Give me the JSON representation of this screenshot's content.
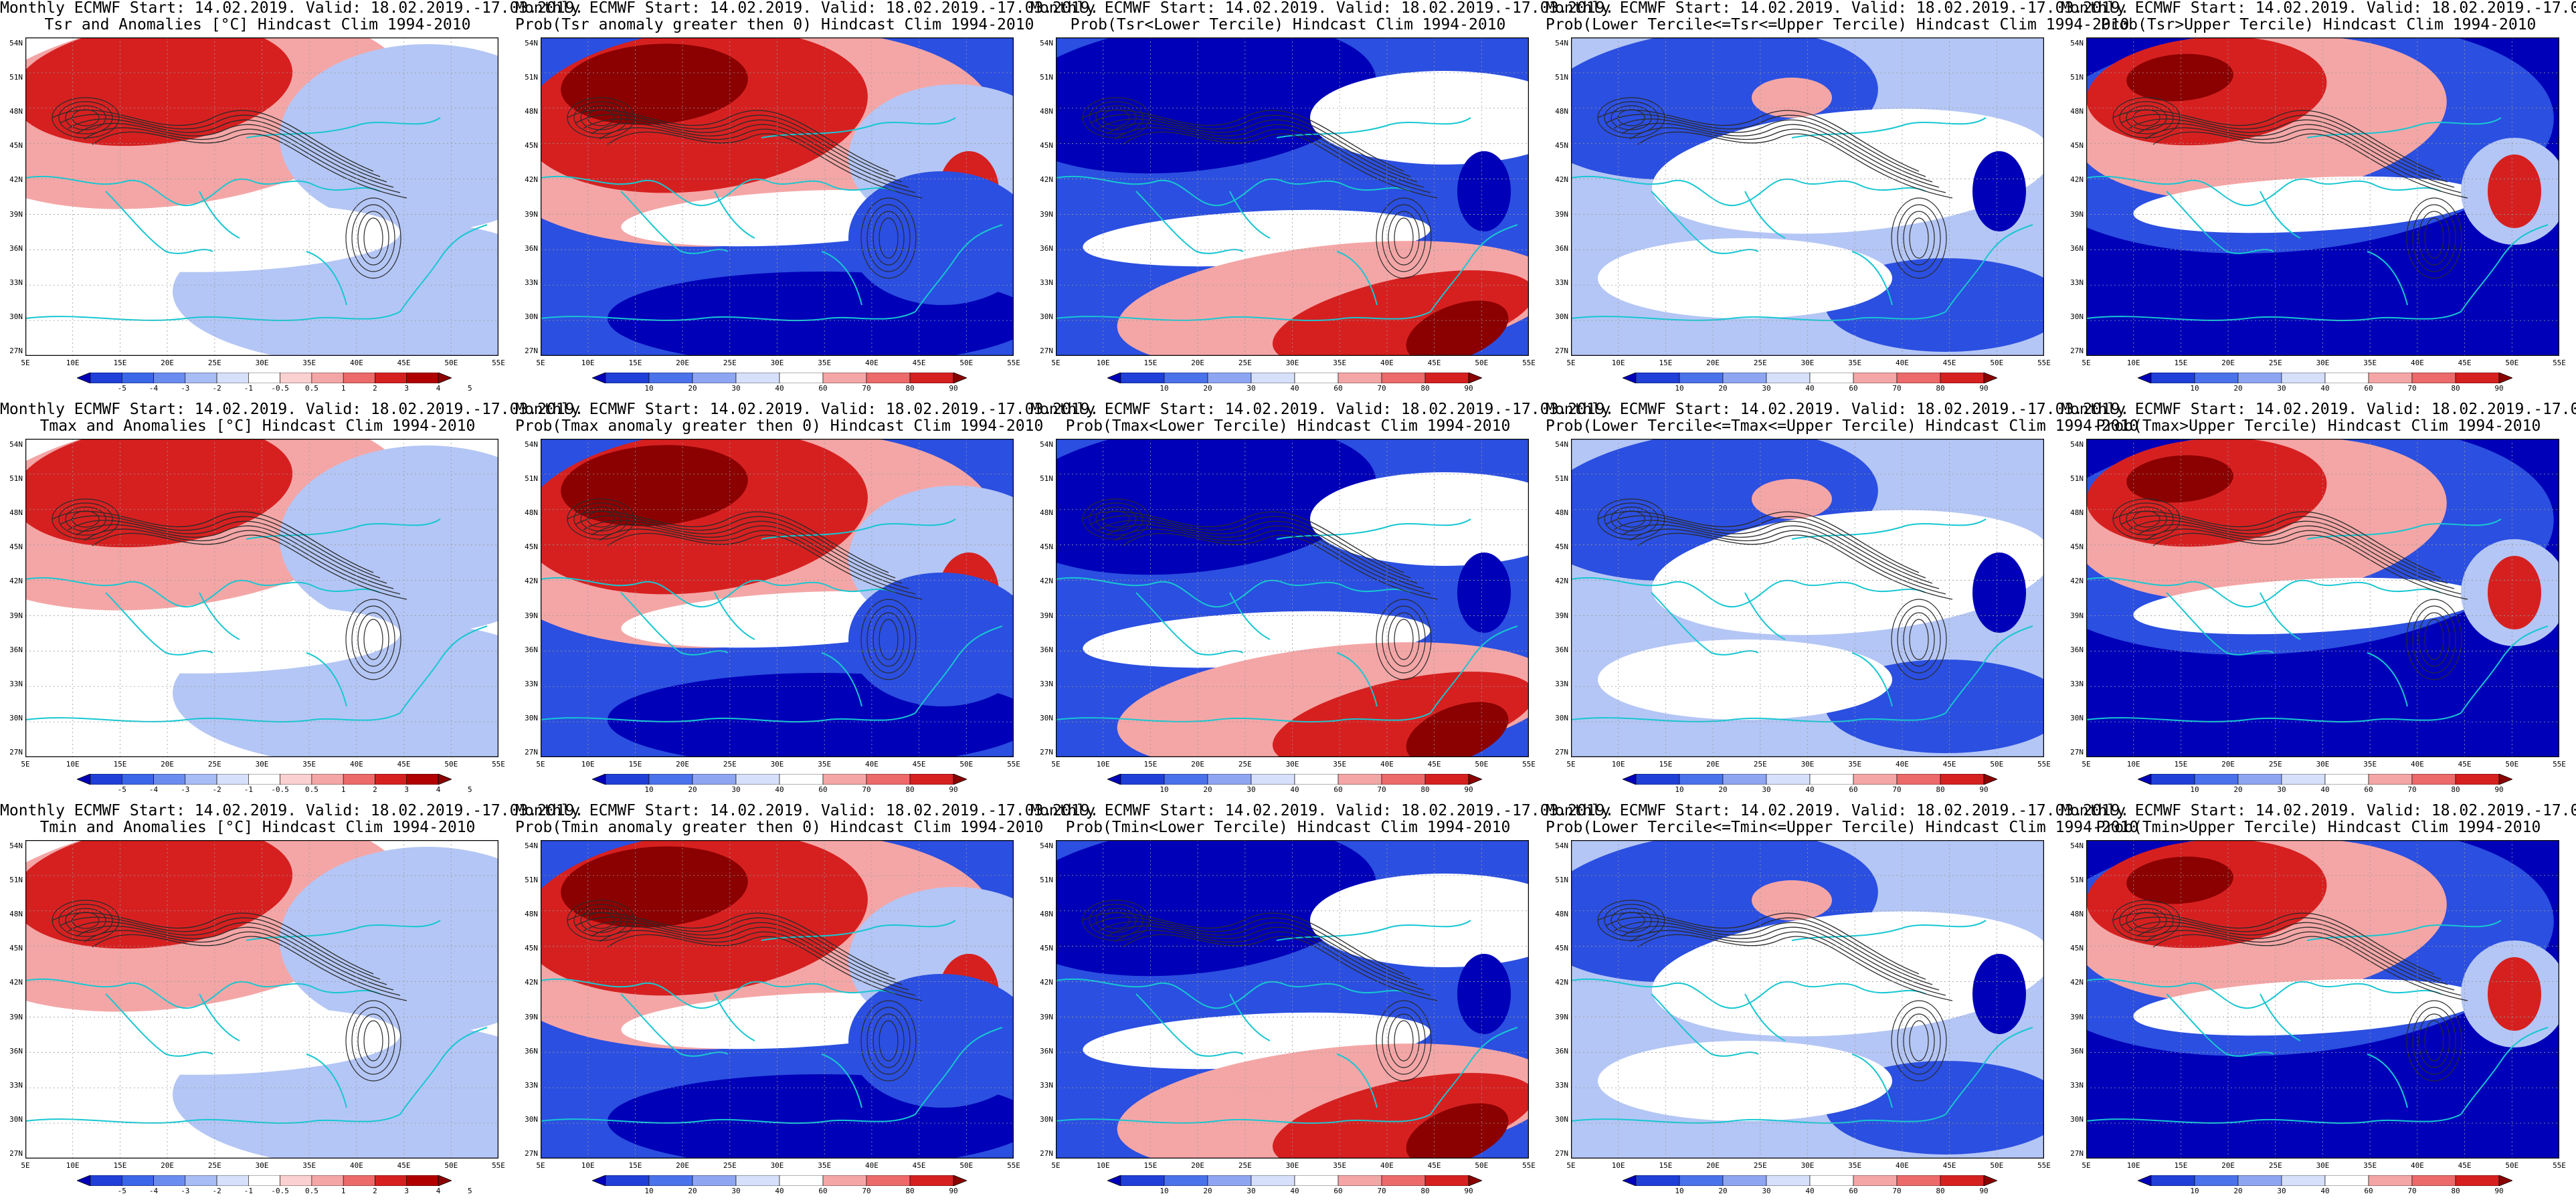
{
  "title_line1": "Monthly ECMWF Start: 14.02.2019. Valid: 18.02.2019.-17.03.2019.",
  "ylabels": [
    "54N",
    "51N",
    "48N",
    "45N",
    "42N",
    "39N",
    "36N",
    "33N",
    "30N",
    "27N"
  ],
  "xlabels": [
    "5E",
    "10E",
    "15E",
    "20E",
    "25E",
    "30E",
    "35E",
    "40E",
    "45E",
    "50E",
    "55E"
  ],
  "cbar_anom": [
    "-5",
    "-4",
    "-3",
    "-2",
    "-1",
    "-0.5",
    "0.5",
    "1",
    "2",
    "3",
    "4",
    "5"
  ],
  "cbar_prob": [
    "10",
    "20",
    "30",
    "40",
    "60",
    "70",
    "80",
    "90"
  ],
  "colors": {
    "red_dark": "#8b0000",
    "red": "#d62020",
    "red_light": "#f4a6a6",
    "white": "#ffffff",
    "blue_light": "#b4c6f5",
    "blue": "#2b4fe0",
    "blue_dark": "#0000b8",
    "contour": "#2a2a2a",
    "coast": "#17c7d2"
  },
  "panels": [
    {
      "title": "Tsr and Anomalies [°C] Hindcast Clim 1994-2010",
      "kind": "anom",
      "pattern": "anom"
    },
    {
      "title": "Prob(Tsr anomaly greater then 0) Hindcast Clim 1994-2010",
      "kind": "prob",
      "pattern": "warm"
    },
    {
      "title": "Prob(Tsr<Lower Tercile) Hindcast Clim 1994-2010",
      "kind": "prob",
      "pattern": "cold"
    },
    {
      "title": "Prob(Lower Tercile<=Tsr<=Upper Tercile) Hindcast Clim 1994-2010",
      "kind": "prob",
      "pattern": "mid"
    },
    {
      "title": "Prob(Tsr>Upper Tercile) Hindcast Clim 1994-2010",
      "kind": "prob",
      "pattern": "upper"
    },
    {
      "title": "Tmax and Anomalies [°C] Hindcast Clim 1994-2010",
      "kind": "anom",
      "pattern": "anom"
    },
    {
      "title": "Prob(Tmax anomaly greater then 0) Hindcast Clim 1994-2010",
      "kind": "prob",
      "pattern": "warm"
    },
    {
      "title": "Prob(Tmax<Lower Tercile) Hindcast Clim 1994-2010",
      "kind": "prob",
      "pattern": "cold"
    },
    {
      "title": "Prob(Lower Tercile<=Tmax<=Upper Tercile) Hindcast Clim 1994-2010",
      "kind": "prob",
      "pattern": "mid"
    },
    {
      "title": "Prob(Tmax>Upper Tercile) Hindcast Clim 1994-2010",
      "kind": "prob",
      "pattern": "upper"
    },
    {
      "title": "Tmin and Anomalies [°C] Hindcast Clim 1994-2010",
      "kind": "anom",
      "pattern": "anom"
    },
    {
      "title": "Prob(Tmin anomaly greater then 0) Hindcast Clim 1994-2010",
      "kind": "prob",
      "pattern": "warm"
    },
    {
      "title": "Prob(Tmin<Lower Tercile) Hindcast Clim 1994-2010",
      "kind": "prob",
      "pattern": "cold"
    },
    {
      "title": "Prob(Lower Tercile<=Tmin<=Upper Tercile) Hindcast Clim 1994-2010",
      "kind": "prob",
      "pattern": "mid"
    },
    {
      "title": "Prob(Tmin>Upper Tercile) Hindcast Clim 1994-2010",
      "kind": "prob",
      "pattern": "upper"
    }
  ]
}
